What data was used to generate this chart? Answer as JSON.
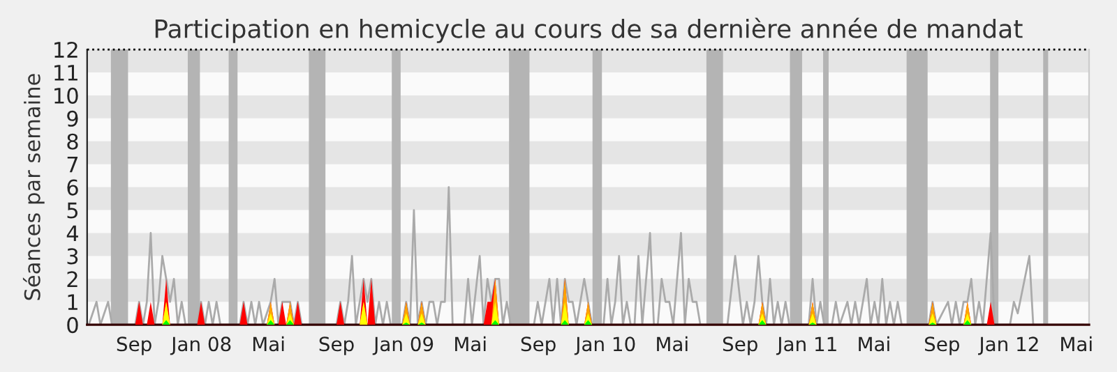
{
  "chart_data": {
    "type": "line",
    "title": "Participation en hemicycle au cours de sa dernière année de mandat",
    "ylabel": "Séances par semaine",
    "xlim": [
      "2007-06-08",
      "2012-05-24"
    ],
    "ylim": [
      0,
      12
    ],
    "yticks": [
      0,
      1,
      2,
      3,
      4,
      5,
      6,
      7,
      8,
      9,
      10,
      11,
      12
    ],
    "xticks": [
      {
        "value": "2007-09-01",
        "label": "Sep"
      },
      {
        "value": "2008-01-01",
        "label": "Jan 08"
      },
      {
        "value": "2008-05-01",
        "label": "Mai"
      },
      {
        "value": "2008-09-01",
        "label": "Sep"
      },
      {
        "value": "2009-01-01",
        "label": "Jan 09"
      },
      {
        "value": "2009-05-01",
        "label": "Mai"
      },
      {
        "value": "2009-09-01",
        "label": "Sep"
      },
      {
        "value": "2010-01-01",
        "label": "Jan 10"
      },
      {
        "value": "2010-05-01",
        "label": "Mai"
      },
      {
        "value": "2010-09-01",
        "label": "Sep"
      },
      {
        "value": "2011-01-01",
        "label": "Jan 11"
      },
      {
        "value": "2011-05-01",
        "label": "Mai"
      },
      {
        "value": "2011-09-01",
        "label": "Sep"
      },
      {
        "value": "2012-01-01",
        "label": "Jan 12"
      },
      {
        "value": "2012-05-01",
        "label": "Mai"
      }
    ],
    "legend": false,
    "bands": [
      {
        "axis": "y",
        "from": 1,
        "to": 2,
        "color": "#e5e5e5"
      },
      {
        "axis": "y",
        "from": 3,
        "to": 4,
        "color": "#e5e5e5"
      },
      {
        "axis": "y",
        "from": 5,
        "to": 6,
        "color": "#e5e5e5"
      },
      {
        "axis": "y",
        "from": 7,
        "to": 8,
        "color": "#e5e5e5"
      },
      {
        "axis": "y",
        "from": 9,
        "to": 10,
        "color": "#e5e5e5"
      },
      {
        "axis": "y",
        "from": 11,
        "to": 12,
        "color": "#e5e5e5"
      },
      {
        "axis": "x",
        "from": "2007-07-21",
        "to": "2007-08-21",
        "color": "#b4b4b4"
      },
      {
        "axis": "x",
        "from": "2007-12-07",
        "to": "2007-12-29",
        "color": "#b4b4b4"
      },
      {
        "axis": "x",
        "from": "2008-02-19",
        "to": "2008-03-06",
        "color": "#b4b4b4"
      },
      {
        "axis": "x",
        "from": "2008-07-13",
        "to": "2008-08-12",
        "color": "#b4b4b4"
      },
      {
        "axis": "x",
        "from": "2008-12-10",
        "to": "2008-12-26",
        "color": "#b4b4b4"
      },
      {
        "axis": "x",
        "from": "2009-07-10",
        "to": "2009-08-16",
        "color": "#b4b4b4"
      },
      {
        "axis": "x",
        "from": "2009-12-08",
        "to": "2009-12-25",
        "color": "#b4b4b4"
      },
      {
        "axis": "x",
        "from": "2010-07-02",
        "to": "2010-08-01",
        "color": "#b4b4b4"
      },
      {
        "axis": "x",
        "from": "2010-11-30",
        "to": "2010-12-22",
        "color": "#b4b4b4"
      },
      {
        "axis": "x",
        "from": "2011-01-29",
        "to": "2011-02-08",
        "color": "#b4b4b4"
      },
      {
        "axis": "x",
        "from": "2011-06-29",
        "to": "2011-08-06",
        "color": "#b4b4b4"
      },
      {
        "axis": "x",
        "from": "2011-11-27",
        "to": "2011-12-12",
        "color": "#b4b4b4"
      },
      {
        "axis": "x",
        "from": "2012-03-02",
        "to": "2012-03-11",
        "color": "#b4b4b4"
      }
    ],
    "ref_lines": [
      {
        "axis": "y",
        "value": 12,
        "color": "#000000",
        "line_style": "dotted"
      }
    ],
    "series": [
      {
        "color": "#aaaaaa",
        "x": [
          "2007-06-11",
          "2007-06-25",
          "2007-07-02",
          "2007-07-16",
          "2007-07-23",
          "2007-09-03",
          "2007-09-10",
          "2007-09-17",
          "2007-09-24",
          "2007-10-01",
          "2007-10-08",
          "2007-10-15",
          "2007-10-22",
          "2007-10-29",
          "2007-11-05",
          "2007-11-12",
          "2007-11-19",
          "2007-11-26",
          "2007-12-03",
          "2007-12-24",
          "2007-12-31",
          "2008-01-07",
          "2008-01-14",
          "2008-01-21",
          "2008-01-28",
          "2008-02-04",
          "2008-03-10",
          "2008-03-17",
          "2008-03-24",
          "2008-03-31",
          "2008-04-07",
          "2008-04-14",
          "2008-04-21",
          "2008-05-05",
          "2008-05-12",
          "2008-05-19",
          "2008-05-26",
          "2008-06-02",
          "2008-06-09",
          "2008-06-16",
          "2008-06-23",
          "2008-06-30",
          "2008-09-01",
          "2008-09-08",
          "2008-09-15",
          "2008-09-22",
          "2008-09-29",
          "2008-10-06",
          "2008-10-13",
          "2008-10-20",
          "2008-10-27",
          "2008-11-03",
          "2008-11-10",
          "2008-11-17",
          "2008-11-24",
          "2008-12-01",
          "2008-12-08",
          "2008-12-29",
          "2009-01-05",
          "2009-01-12",
          "2009-01-19",
          "2009-01-26",
          "2009-02-02",
          "2009-02-09",
          "2009-02-16",
          "2009-02-23",
          "2009-03-02",
          "2009-03-09",
          "2009-03-16",
          "2009-03-23",
          "2009-03-30",
          "2009-04-20",
          "2009-04-27",
          "2009-05-04",
          "2009-05-18",
          "2009-05-25",
          "2009-06-01",
          "2009-06-08",
          "2009-06-15",
          "2009-06-22",
          "2009-06-29",
          "2009-07-06",
          "2009-07-13",
          "2009-08-24",
          "2009-08-31",
          "2009-09-07",
          "2009-09-21",
          "2009-09-28",
          "2009-10-05",
          "2009-10-12",
          "2009-10-19",
          "2009-10-26",
          "2009-11-02",
          "2009-11-09",
          "2009-11-23",
          "2009-11-30",
          "2009-12-07",
          "2009-12-28",
          "2010-01-04",
          "2010-01-11",
          "2010-01-18",
          "2010-01-25",
          "2010-02-01",
          "2010-02-08",
          "2010-02-15",
          "2010-02-22",
          "2010-03-01",
          "2010-03-08",
          "2010-03-22",
          "2010-03-29",
          "2010-04-05",
          "2010-04-12",
          "2010-04-19",
          "2010-04-26",
          "2010-05-03",
          "2010-05-17",
          "2010-05-24",
          "2010-05-31",
          "2010-06-07",
          "2010-06-14",
          "2010-06-21",
          "2010-08-09",
          "2010-08-23",
          "2010-09-06",
          "2010-09-13",
          "2010-09-20",
          "2010-09-27",
          "2010-10-04",
          "2010-10-11",
          "2010-10-18",
          "2010-10-25",
          "2010-11-01",
          "2010-11-08",
          "2010-11-15",
          "2010-11-22",
          "2010-11-29",
          "2011-01-03",
          "2011-01-10",
          "2011-01-17",
          "2011-01-24",
          "2011-01-31",
          "2011-02-14",
          "2011-02-21",
          "2011-02-28",
          "2011-03-14",
          "2011-03-21",
          "2011-03-28",
          "2011-04-04",
          "2011-04-18",
          "2011-04-25",
          "2011-05-02",
          "2011-05-09",
          "2011-05-16",
          "2011-05-23",
          "2011-05-30",
          "2011-06-06",
          "2011-06-13",
          "2011-06-20",
          "2011-08-08",
          "2011-08-15",
          "2011-08-22",
          "2011-09-12",
          "2011-09-19",
          "2011-09-26",
          "2011-10-03",
          "2011-10-10",
          "2011-10-17",
          "2011-10-24",
          "2011-10-31",
          "2011-11-07",
          "2011-11-14",
          "2011-11-28",
          "2011-12-05",
          "2012-01-02",
          "2012-01-09",
          "2012-01-16",
          "2012-02-06",
          "2012-02-13",
          "2012-05-14"
        ],
        "values": [
          0,
          1,
          0,
          1,
          0,
          0,
          1,
          0,
          1,
          4,
          0,
          1,
          3,
          2,
          1,
          2,
          0,
          1,
          0,
          0,
          1,
          0,
          1,
          0,
          1,
          0,
          0,
          1,
          0,
          1,
          0,
          1,
          0,
          1,
          2,
          0,
          1,
          1,
          1,
          0,
          1,
          0,
          0,
          1,
          0,
          1,
          3,
          0,
          1,
          2,
          1,
          2,
          0,
          1,
          0,
          1,
          0,
          0,
          1,
          0,
          5,
          0,
          1,
          0,
          1,
          1,
          0,
          1,
          1,
          6,
          0,
          0,
          2,
          0,
          3,
          0,
          2,
          1,
          2,
          2,
          0,
          1,
          0,
          0,
          1,
          0,
          2,
          0,
          2,
          0,
          2,
          1,
          1,
          0,
          2,
          1,
          0,
          0,
          2,
          0,
          1,
          3,
          0,
          1,
          0,
          0,
          3,
          0,
          4,
          0,
          0,
          2,
          1,
          1,
          0,
          4,
          0,
          2,
          1,
          1,
          0,
          0,
          3,
          0,
          1,
          0,
          1,
          3,
          1,
          0,
          2,
          0,
          1,
          0,
          1,
          0,
          0,
          2,
          0,
          1,
          0,
          0,
          1,
          0,
          1,
          0,
          1,
          0,
          2,
          0,
          1,
          0,
          2,
          0,
          1,
          0,
          1,
          0,
          0,
          1,
          0,
          1,
          0,
          1,
          0,
          1,
          1,
          2,
          0,
          1,
          0,
          4,
          0,
          0,
          1,
          0.5,
          3,
          0,
          0
        ]
      },
      {
        "type": "area",
        "color": "#ff0000",
        "x": [
          "2007-09-03",
          "2007-09-10",
          "2007-09-17",
          "2007-09-24",
          "2007-10-01",
          "2007-10-08",
          "2007-10-22",
          "2007-10-29",
          "2007-11-05",
          "2007-12-24",
          "2007-12-31",
          "2008-01-07",
          "2008-03-10",
          "2008-03-17",
          "2008-03-24",
          "2008-04-28",
          "2008-05-05",
          "2008-05-12",
          "2008-05-19",
          "2008-05-26",
          "2008-06-02",
          "2008-06-09",
          "2008-06-16",
          "2008-06-23",
          "2008-06-30",
          "2008-09-01",
          "2008-09-08",
          "2008-09-15",
          "2008-10-13",
          "2008-10-20",
          "2008-10-27",
          "2008-11-03",
          "2008-11-10",
          "2008-12-29",
          "2009-01-05",
          "2009-01-12",
          "2009-01-26",
          "2009-02-02",
          "2009-02-09",
          "2009-05-25",
          "2009-06-01",
          "2009-06-08",
          "2009-06-15",
          "2009-06-22",
          "2009-10-12",
          "2009-10-19",
          "2009-10-26",
          "2009-11-23",
          "2009-11-30",
          "2009-12-07",
          "2010-10-04",
          "2010-10-11",
          "2010-10-18",
          "2011-01-03",
          "2011-01-10",
          "2011-01-17",
          "2011-08-08",
          "2011-08-15",
          "2011-08-22",
          "2011-10-10",
          "2011-10-17",
          "2011-10-24",
          "2011-11-21",
          "2011-11-28",
          "2011-12-05"
        ],
        "values": [
          0,
          1,
          0,
          0,
          1,
          0,
          0,
          2,
          0,
          0,
          1,
          0,
          0,
          1,
          0,
          0,
          1,
          0,
          0,
          1,
          0,
          1,
          0,
          1,
          0,
          0,
          1,
          0,
          0,
          2,
          0,
          2,
          0,
          0,
          1,
          0,
          0,
          1,
          0,
          0,
          1,
          1,
          2,
          0,
          0,
          2,
          0,
          0,
          1,
          0,
          0,
          1,
          0,
          0,
          1,
          0,
          0,
          1,
          0,
          0,
          1,
          0,
          0,
          1,
          0
        ]
      },
      {
        "type": "area",
        "color": "#ffa500",
        "x": [
          "2007-10-22",
          "2007-10-29",
          "2007-11-05",
          "2008-04-28",
          "2008-05-05",
          "2008-05-12",
          "2008-06-02",
          "2008-06-09",
          "2008-06-16",
          "2008-10-13",
          "2008-10-20",
          "2008-10-27",
          "2008-12-29",
          "2009-01-05",
          "2009-01-12",
          "2009-01-26",
          "2009-02-02",
          "2009-02-09",
          "2009-06-08",
          "2009-06-15",
          "2009-06-22",
          "2009-10-12",
          "2009-10-19",
          "2009-10-26",
          "2009-11-23",
          "2009-11-30",
          "2009-12-07",
          "2010-10-04",
          "2010-10-11",
          "2010-10-18",
          "2011-01-03",
          "2011-01-10",
          "2011-01-17",
          "2011-08-08",
          "2011-08-15",
          "2011-08-22",
          "2011-10-10",
          "2011-10-17",
          "2011-10-24"
        ],
        "values": [
          0,
          1,
          0,
          0,
          1,
          0,
          0,
          1,
          0,
          0,
          1,
          0,
          0,
          1,
          0,
          0,
          1,
          0,
          0,
          2,
          0,
          0,
          2,
          0,
          0,
          1,
          0,
          0,
          1,
          0,
          0,
          1,
          0,
          0,
          1,
          0,
          0,
          1,
          0
        ]
      },
      {
        "type": "area",
        "color": "#ffff00",
        "x": [
          "2007-10-22",
          "2007-10-29",
          "2007-11-05",
          "2008-04-28",
          "2008-05-05",
          "2008-05-12",
          "2008-06-02",
          "2008-06-09",
          "2008-06-16",
          "2008-10-13",
          "2008-10-20",
          "2008-10-27",
          "2008-12-29",
          "2009-01-05",
          "2009-01-12",
          "2009-01-26",
          "2009-02-02",
          "2009-02-09",
          "2009-06-08",
          "2009-06-15",
          "2009-06-22",
          "2009-10-12",
          "2009-10-19",
          "2009-10-26",
          "2009-11-23",
          "2009-11-30",
          "2009-12-07",
          "2010-10-04",
          "2010-10-11",
          "2010-10-18",
          "2011-01-03",
          "2011-01-10",
          "2011-01-17",
          "2011-08-08",
          "2011-08-15",
          "2011-08-22",
          "2011-10-10",
          "2011-10-17",
          "2011-10-24"
        ],
        "values": [
          0,
          1,
          0,
          0,
          0.5,
          0,
          0,
          0.5,
          0,
          0,
          1,
          0,
          0,
          0.5,
          0,
          0,
          0.5,
          0,
          0,
          1,
          0,
          0,
          1,
          0,
          0,
          0.5,
          0,
          0,
          0.5,
          0,
          0,
          0.5,
          0,
          0,
          0.5,
          0,
          0,
          0.5,
          0
        ]
      },
      {
        "type": "area",
        "color": "#00ff00",
        "x": [
          "2007-10-22",
          "2007-10-29",
          "2007-11-05",
          "2008-04-28",
          "2008-05-05",
          "2008-05-12",
          "2008-06-02",
          "2008-06-09",
          "2008-06-16",
          "2008-12-29",
          "2009-01-05",
          "2009-01-12",
          "2009-01-26",
          "2009-02-02",
          "2009-02-09",
          "2009-06-08",
          "2009-06-15",
          "2009-06-22",
          "2009-10-12",
          "2009-10-19",
          "2009-10-26",
          "2009-11-23",
          "2009-11-30",
          "2009-12-07",
          "2010-10-04",
          "2010-10-11",
          "2010-10-18",
          "2011-01-03",
          "2011-01-10",
          "2011-01-17",
          "2011-08-08",
          "2011-08-15",
          "2011-08-22",
          "2011-10-10",
          "2011-10-17",
          "2011-10-24"
        ],
        "values": [
          0,
          0.2,
          0,
          0,
          0.2,
          0,
          0,
          0.2,
          0,
          0,
          0.1,
          0,
          0,
          0.1,
          0,
          0,
          0.2,
          0,
          0,
          0.2,
          0,
          0,
          0.2,
          0,
          0,
          0.2,
          0,
          0,
          0.1,
          0,
          0,
          0.1,
          0,
          0,
          0.2,
          0
        ]
      }
    ]
  }
}
